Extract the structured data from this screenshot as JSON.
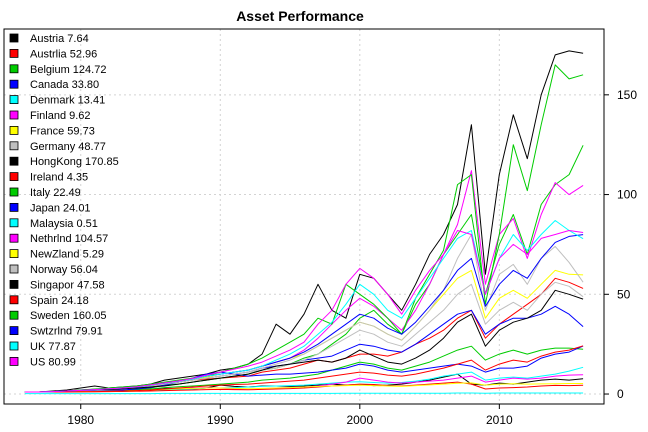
{
  "chart_data": {
    "type": "line",
    "title": "Asset Performance",
    "xlabel": "",
    "ylabel": "",
    "xlim": [
      1974.5,
      2017.5
    ],
    "ylim": [
      -5,
      183
    ],
    "x_ticks": [
      1980,
      1990,
      2000,
      2010
    ],
    "y_ticks": [
      0,
      50,
      100,
      150
    ],
    "grid": true,
    "legend_position": "top-left",
    "x": [
      1976,
      1977,
      1978,
      1979,
      1980,
      1981,
      1982,
      1983,
      1984,
      1985,
      1986,
      1987,
      1988,
      1989,
      1990,
      1991,
      1992,
      1993,
      1994,
      1995,
      1996,
      1997,
      1998,
      1999,
      2000,
      2001,
      2002,
      2003,
      2004,
      2005,
      2006,
      2007,
      2008,
      2009,
      2010,
      2011,
      2012,
      2013,
      2014,
      2015,
      2016
    ],
    "series": [
      {
        "name": "Austria",
        "label": "7.64",
        "color": "#000000",
        "values": [
          1,
          1,
          1,
          1,
          1.2,
          1.3,
          1.3,
          1.4,
          1.5,
          2,
          3,
          2.6,
          2.5,
          3,
          4.5,
          3.8,
          3.5,
          4,
          4,
          3.8,
          4,
          4.5,
          5,
          4.5,
          4.8,
          4.2,
          4.5,
          5,
          6,
          7,
          8.5,
          10,
          5,
          4.5,
          5.5,
          5,
          6,
          7,
          7.5,
          7,
          7.64
        ]
      },
      {
        "name": "Austrlia",
        "label": "52.96",
        "color": "#ff0000",
        "values": [
          1,
          1,
          1.2,
          1.5,
          2,
          2.2,
          2,
          2.5,
          2.8,
          3.5,
          5,
          6,
          7,
          7.5,
          8,
          8.5,
          9,
          11,
          12,
          13,
          15,
          17,
          16,
          18,
          20,
          20,
          19,
          21,
          25,
          28,
          32,
          38,
          42,
          28,
          35,
          40,
          45,
          50,
          58,
          56,
          52.96
        ]
      },
      {
        "name": "Belgium",
        "label": "124.72",
        "color": "#00cc00",
        "values": [
          1,
          1,
          1,
          1.1,
          1.2,
          1.4,
          1.5,
          1.8,
          2.2,
          3,
          4.5,
          5,
          6,
          7,
          8,
          9,
          10,
          12,
          13,
          15,
          18,
          20,
          25,
          30,
          38,
          42,
          35,
          30,
          45,
          55,
          70,
          80,
          90,
          50,
          75,
          90,
          70,
          95,
          105,
          110,
          124.72
        ]
      },
      {
        "name": "Canada",
        "label": "33.80",
        "color": "#0000ff",
        "values": [
          1,
          1,
          1.2,
          1.5,
          2,
          2.2,
          2,
          2.5,
          3,
          4,
          5,
          6,
          7,
          8,
          9,
          10,
          11,
          13,
          14,
          15,
          17,
          18,
          19,
          22,
          25,
          24,
          22,
          21,
          25,
          30,
          35,
          40,
          42,
          30,
          35,
          38,
          38,
          40,
          44,
          40,
          33.8
        ]
      },
      {
        "name": "Denmark",
        "label": "13.41",
        "color": "#00ffff",
        "values": [
          1,
          1,
          1,
          1,
          1.1,
          1.2,
          1.3,
          1.4,
          1.5,
          1.8,
          2,
          2.2,
          2.5,
          3,
          3,
          3.2,
          3.5,
          3.8,
          4,
          4.2,
          4.5,
          5,
          5.5,
          6,
          6.2,
          5.8,
          5.5,
          5.8,
          6.5,
          7.5,
          9,
          10,
          11,
          7,
          8,
          8.5,
          8,
          9,
          10,
          11.5,
          13.41
        ]
      },
      {
        "name": "Finland",
        "label": "9.62",
        "color": "#ff00ff",
        "values": [
          1,
          1,
          1,
          1,
          1.2,
          1.3,
          1.4,
          1.6,
          1.8,
          2,
          2.5,
          2.8,
          3,
          3.2,
          3,
          2.5,
          2.3,
          2.6,
          3,
          3.2,
          3.5,
          4,
          5,
          6,
          8,
          7,
          6,
          5.5,
          6,
          6.5,
          7,
          8,
          9,
          6,
          7,
          8,
          7.5,
          8,
          9,
          9.5,
          9.62
        ]
      },
      {
        "name": "France",
        "label": "59.73",
        "color": "#ffff00",
        "values": [
          1,
          1,
          1.2,
          1.4,
          1.6,
          1.8,
          2,
          2.4,
          3,
          4,
          5,
          6,
          7,
          8.5,
          10,
          11,
          12,
          14,
          16,
          18,
          20,
          24,
          28,
          32,
          36,
          34,
          30,
          27,
          34,
          42,
          50,
          58,
          62,
          38,
          48,
          52,
          48,
          55,
          62,
          60,
          59.73
        ]
      },
      {
        "name": "Germany",
        "label": "48.77",
        "color": "#bfbfbf",
        "values": [
          1,
          1,
          1.2,
          1.4,
          1.6,
          1.8,
          2,
          2.4,
          3,
          4,
          5,
          6,
          7,
          8,
          9,
          10,
          11,
          12,
          13,
          15,
          17,
          20,
          24,
          28,
          32,
          30,
          26,
          24,
          30,
          36,
          42,
          50,
          55,
          35,
          42,
          46,
          42,
          50,
          56,
          54,
          48.77
        ]
      },
      {
        "name": "HongKong",
        "label": "170.85",
        "color": "#000000",
        "values": [
          1,
          1,
          1.5,
          2,
          3,
          4,
          3,
          3.5,
          4,
          5,
          7,
          8,
          9,
          10,
          12,
          13,
          15,
          20,
          35,
          30,
          40,
          55,
          42,
          38,
          60,
          58,
          50,
          42,
          55,
          70,
          80,
          95,
          135,
          60,
          110,
          140,
          118,
          150,
          170,
          172,
          170.85
        ]
      },
      {
        "name": "Ireland",
        "label": "4.35",
        "color": "#ff0000",
        "values": [
          1,
          1,
          1,
          1,
          1.1,
          1.1,
          1.2,
          1.3,
          1.4,
          1.5,
          1.7,
          1.9,
          2,
          2.2,
          2.3,
          2.2,
          2.1,
          2.3,
          2.5,
          2.7,
          3,
          3.5,
          4,
          4.5,
          5,
          4.8,
          4.2,
          4,
          4.5,
          5,
          5.5,
          6,
          5,
          2.5,
          3,
          3.2,
          3.5,
          4,
          4.3,
          4.2,
          4.35
        ]
      },
      {
        "name": "Italy",
        "label": "22.49",
        "color": "#00cc00",
        "values": [
          1,
          1,
          1,
          1.1,
          1.3,
          1.5,
          1.6,
          1.8,
          2,
          2.5,
          3.2,
          3.6,
          4,
          4.5,
          5,
          5.5,
          6,
          7,
          7.5,
          8,
          9,
          10,
          12,
          14,
          16,
          15,
          13,
          12,
          14,
          16,
          19,
          22,
          24,
          17,
          20,
          22,
          20,
          22,
          23,
          23,
          22.49
        ]
      },
      {
        "name": "Japan",
        "label": "24.01",
        "color": "#0000ff",
        "values": [
          1,
          1,
          1.1,
          1.2,
          1.4,
          1.6,
          1.8,
          2,
          2.5,
          3.2,
          4.5,
          6,
          8,
          10,
          11,
          10,
          9,
          9.5,
          10,
          10,
          10.5,
          11,
          12,
          13,
          15,
          14,
          12,
          11,
          12,
          13,
          14,
          15,
          14,
          11,
          13,
          13,
          14,
          18,
          20,
          21,
          24.01
        ]
      },
      {
        "name": "Malaysia",
        "label": "0.51",
        "color": "#00ffff",
        "values": [
          0.2,
          0.2,
          0.2,
          0.2,
          0.2,
          0.2,
          0.2,
          0.2,
          0.2,
          0.2,
          0.3,
          0.3,
          0.3,
          0.3,
          0.3,
          0.3,
          0.3,
          0.3,
          0.3,
          0.3,
          0.3,
          0.3,
          0.3,
          0.4,
          0.4,
          0.4,
          0.4,
          0.4,
          0.4,
          0.4,
          0.4,
          0.5,
          0.5,
          0.4,
          0.5,
          0.5,
          0.5,
          0.5,
          0.5,
          0.5,
          0.51
        ]
      },
      {
        "name": "Nethrlnd",
        "label": "104.57",
        "color": "#ff00ff",
        "values": [
          1,
          1,
          1.2,
          1.5,
          1.8,
          2,
          2.3,
          2.8,
          3.5,
          4.5,
          5.5,
          6.5,
          7.5,
          9,
          10,
          11,
          12,
          14,
          16,
          18,
          22,
          28,
          35,
          42,
          48,
          44,
          38,
          32,
          42,
          55,
          70,
          85,
          112,
          55,
          80,
          88,
          68,
          90,
          106,
          100,
          104.57
        ]
      },
      {
        "name": "NewZland",
        "label": "5.29",
        "color": "#ffff00",
        "values": [
          1,
          1,
          1,
          1.1,
          1.2,
          1.3,
          1.4,
          1.5,
          1.7,
          2,
          2.3,
          2.6,
          2.8,
          3,
          3,
          2.8,
          2.6,
          2.8,
          3,
          3.2,
          3.5,
          3.8,
          4,
          4.2,
          4.5,
          4.2,
          4,
          3.8,
          4.2,
          4.6,
          5,
          5.4,
          5.6,
          4.5,
          5,
          5.2,
          5,
          5.1,
          5.2,
          5.3,
          5.29
        ]
      },
      {
        "name": "Norway",
        "label": "56.04",
        "color": "#bfbfbf",
        "values": [
          1,
          1,
          1.2,
          1.5,
          1.8,
          2,
          2.2,
          2.6,
          3,
          4,
          5,
          6,
          7,
          8,
          9,
          10,
          11,
          13,
          15,
          17,
          20,
          24,
          28,
          32,
          36,
          34,
          30,
          27,
          34,
          42,
          52,
          68,
          80,
          42,
          60,
          65,
          55,
          68,
          74,
          66,
          56.04
        ]
      },
      {
        "name": "Singapor",
        "label": "47.58",
        "color": "#000000",
        "values": [
          1,
          1,
          1.2,
          1.5,
          2,
          2.4,
          2.2,
          2.6,
          3,
          3.5,
          4,
          5,
          6,
          7,
          8,
          9,
          10,
          12,
          14,
          15,
          16,
          17,
          16,
          18,
          22,
          19,
          16,
          15,
          18,
          22,
          28,
          36,
          40,
          24,
          32,
          36,
          38,
          42,
          52,
          50,
          47.58
        ]
      },
      {
        "name": "Spain",
        "label": "24.18",
        "color": "#ff0000",
        "values": [
          1,
          1,
          1,
          1,
          1.1,
          1.2,
          1.3,
          1.5,
          1.7,
          2,
          2.5,
          3,
          3.5,
          4,
          4.5,
          4.8,
          5,
          5.5,
          6,
          6.5,
          7,
          8,
          9,
          10,
          11,
          10.5,
          9.5,
          9,
          10,
          11.5,
          13,
          15,
          17,
          12,
          15,
          17,
          16,
          19,
          21,
          22,
          24.18
        ]
      },
      {
        "name": "Sweden",
        "label": "160.05",
        "color": "#00cc00",
        "values": [
          1,
          1,
          1.2,
          1.5,
          2,
          2.5,
          3,
          3.5,
          4,
          5,
          6,
          7,
          8,
          9,
          11,
          13,
          15,
          18,
          22,
          26,
          30,
          38,
          35,
          55,
          50,
          45,
          38,
          30,
          48,
          60,
          72,
          105,
          110,
          45,
          80,
          125,
          102,
          135,
          165,
          158,
          160.05
        ]
      },
      {
        "name": "Swtzrlnd",
        "label": "79.91",
        "color": "#0000ff",
        "values": [
          1,
          1,
          1.2,
          1.5,
          1.8,
          2.2,
          2.5,
          3,
          3.5,
          4.5,
          5.5,
          6.5,
          7.5,
          9,
          10,
          11,
          12,
          14,
          16,
          18,
          21,
          25,
          30,
          35,
          40,
          38,
          33,
          30,
          36,
          44,
          52,
          62,
          68,
          44,
          55,
          62,
          58,
          68,
          76,
          79,
          79.91
        ]
      },
      {
        "name": "UK",
        "label": "77.87",
        "color": "#00ffff",
        "values": [
          1,
          1,
          1.2,
          1.5,
          1.8,
          2.2,
          2.6,
          3,
          3.5,
          4.5,
          5.5,
          6.5,
          7.5,
          9,
          10,
          11,
          12,
          14,
          17,
          20,
          24,
          30,
          36,
          45,
          55,
          50,
          42,
          38,
          48,
          58,
          68,
          78,
          82,
          50,
          68,
          80,
          72,
          80,
          87,
          82,
          77.87
        ]
      },
      {
        "name": "US",
        "label": "80.99",
        "color": "#ff00ff",
        "values": [
          1,
          1,
          1.2,
          1.5,
          1.8,
          2.2,
          2.6,
          3,
          3.6,
          4.6,
          5.6,
          6.6,
          7.8,
          9.5,
          11,
          12.5,
          14,
          16,
          19,
          22,
          26,
          35,
          42,
          55,
          63,
          58,
          50,
          40,
          52,
          62,
          70,
          82,
          80,
          50,
          68,
          75,
          70,
          78,
          80,
          82,
          80.99
        ]
      }
    ]
  }
}
